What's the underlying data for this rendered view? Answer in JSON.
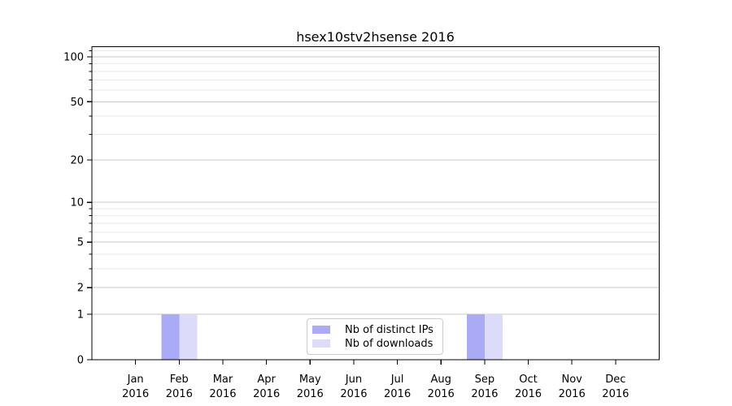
{
  "chart_data": {
    "type": "bar",
    "title": "hsex10stv2hsense 2016",
    "categories": [
      "Jan",
      "Feb",
      "Mar",
      "Apr",
      "May",
      "Jun",
      "Jul",
      "Aug",
      "Sep",
      "Oct",
      "Nov",
      "Dec"
    ],
    "category_year": "2016",
    "series": [
      {
        "name": "Nb of distinct IPs",
        "color": "#aaaaf7",
        "values": [
          0,
          1,
          0,
          0,
          0,
          0,
          0,
          0,
          1,
          0,
          0,
          0
        ]
      },
      {
        "name": "Nb of downloads",
        "color": "#dcdcfa",
        "values": [
          0,
          1,
          0,
          0,
          0,
          0,
          0,
          0,
          1,
          0,
          0,
          0
        ]
      }
    ],
    "y_axis": {
      "scale": "log10(1+y)",
      "major_ticks": [
        0,
        1,
        2,
        5,
        10,
        20,
        50,
        100
      ],
      "minor_ticks": [
        3,
        4,
        6,
        7,
        8,
        9,
        30,
        40,
        60,
        70,
        80,
        90,
        110
      ],
      "limit": [
        0,
        117
      ]
    },
    "legend": {
      "position": "lower center"
    },
    "grid": {
      "major_color": "#c9c9c9",
      "minor_color": "#eaeaea"
    },
    "colors": {
      "axis": "#000000",
      "text": "#000000",
      "background": "#ffffff"
    }
  }
}
